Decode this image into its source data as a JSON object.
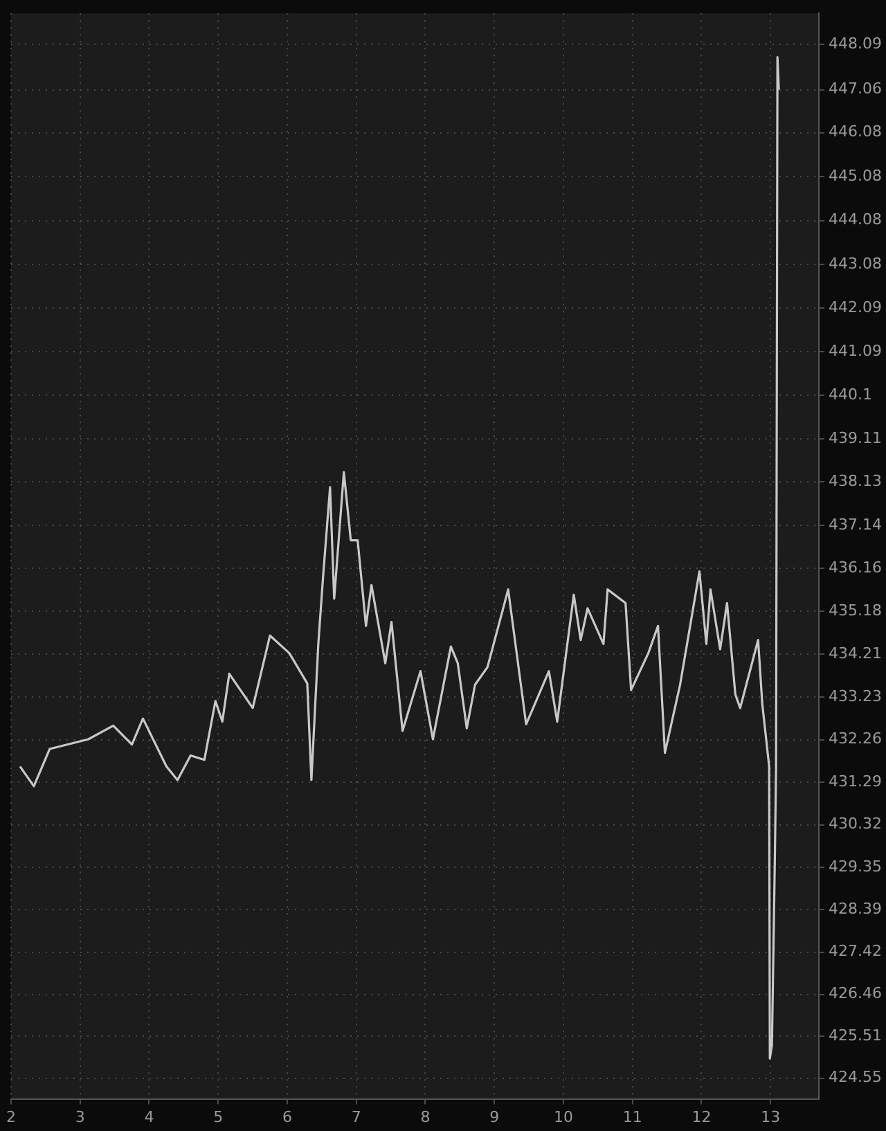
{
  "chart_data": {
    "type": "line",
    "x": [
      2.13,
      2.33,
      2.56,
      3.12,
      3.48,
      3.75,
      3.91,
      4.25,
      4.41,
      4.6,
      4.8,
      4.96,
      5.06,
      5.16,
      5.5,
      5.75,
      6.03,
      6.29,
      6.35,
      6.45,
      6.52,
      6.62,
      6.68,
      6.82,
      6.92,
      7.02,
      7.14,
      7.22,
      7.42,
      7.51,
      7.67,
      7.93,
      8.11,
      8.37,
      8.47,
      8.6,
      8.72,
      8.9,
      9.2,
      9.46,
      9.79,
      9.91,
      10.15,
      10.25,
      10.35,
      10.58,
      10.64,
      10.9,
      10.98,
      11.23,
      11.37,
      11.47,
      11.69,
      11.97,
      12.07,
      12.13,
      12.27,
      12.37,
      12.49,
      12.56,
      12.82,
      12.88,
      12.98,
      12.99,
      13.02,
      13.06,
      13.08,
      13.1,
      13.12
    ],
    "series": [
      {
        "color": "#c8c8c8",
        "values": [
          431.65,
          431.2,
          432.05,
          432.27,
          432.58,
          432.15,
          432.74,
          431.65,
          431.34,
          431.9,
          431.8,
          433.14,
          432.67,
          433.76,
          432.98,
          434.63,
          434.23,
          433.54,
          431.34,
          434.44,
          435.99,
          438.01,
          435.47,
          438.35,
          436.8,
          436.8,
          434.85,
          435.78,
          434.0,
          434.94,
          432.46,
          433.82,
          432.27,
          434.38,
          434.0,
          432.52,
          433.51,
          433.91,
          435.68,
          432.61,
          433.82,
          432.67,
          435.56,
          434.53,
          435.25,
          434.44,
          435.68,
          435.37,
          433.39,
          434.23,
          434.85,
          431.96,
          433.51,
          436.09,
          434.44,
          435.68,
          434.32,
          435.37,
          433.29,
          432.98,
          434.53,
          433.08,
          431.65,
          425.0,
          425.3,
          429.3,
          431.6,
          447.8,
          447.06
        ]
      }
    ],
    "xlim": [
      2,
      13.7
    ],
    "xticks": [
      2,
      3,
      4,
      5,
      6,
      7,
      8,
      9,
      10,
      11,
      12,
      13
    ],
    "ylim": [
      424.08,
      448.8
    ],
    "yticks": [
      424.55,
      425.51,
      426.46,
      427.42,
      428.39,
      429.35,
      430.32,
      431.29,
      432.26,
      433.23,
      434.21,
      435.18,
      436.16,
      437.14,
      438.13,
      439.11,
      440.1,
      441.09,
      442.09,
      443.08,
      444.08,
      445.08,
      446.08,
      447.06,
      448.09
    ],
    "grid": true,
    "marker": "none",
    "line_style": "solid",
    "legend": false
  }
}
